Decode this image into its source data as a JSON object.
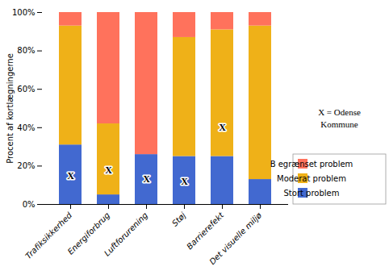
{
  "chart_data": {
    "type": "bar",
    "stacked": true,
    "categories": [
      "Trafiksikkerhed",
      "Energiforbrug",
      "Luftforurening",
      "Støj",
      "Barrierefekt",
      "Det visuelle miljø"
    ],
    "series": [
      {
        "name": "Stort problem",
        "values": [
          31,
          5,
          26,
          25,
          25,
          13
        ]
      },
      {
        "name": "Moderat problem",
        "values": [
          62,
          37,
          0,
          62,
          66,
          80
        ]
      },
      {
        "name": "B egrænset problem",
        "values": [
          7,
          58,
          74,
          13,
          9,
          7
        ]
      }
    ],
    "ylabel": "Procent af kortlægningerne",
    "ylim": [
      0,
      100
    ],
    "yticks": [
      {
        "value": 0,
        "label": "0%"
      },
      {
        "value": 20,
        "label": "20%"
      },
      {
        "value": 40,
        "label": "40%"
      },
      {
        "value": 60,
        "label": "60%"
      },
      {
        "value": 80,
        "label": "80%"
      },
      {
        "value": 100,
        "label": "100%"
      }
    ],
    "legend": "lower right",
    "annotations": [
      {
        "text": "X",
        "category": "Trafiksikkerhed",
        "y": 15
      },
      {
        "text": "X",
        "category": "Energiforbrug",
        "y": 18
      },
      {
        "text": "X",
        "category": "Luftforurening",
        "y": 13
      },
      {
        "text": "X",
        "category": "Støj",
        "y": 12
      },
      {
        "text": "X",
        "category": "Barrierefekt",
        "y": 40
      },
      {
        "text": "X = Odense\nKommune"
      }
    ]
  }
}
